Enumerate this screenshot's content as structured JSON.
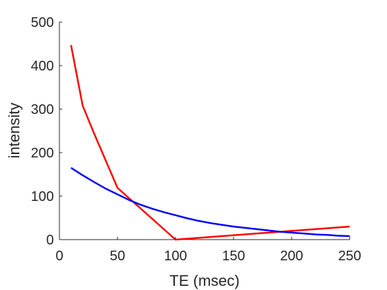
{
  "chart_data": {
    "type": "line",
    "title": "",
    "xlabel": "TE (msec)",
    "ylabel": "intensity",
    "xlim": [
      0,
      250
    ],
    "ylim": [
      0,
      500
    ],
    "xticks": [
      0,
      50,
      100,
      150,
      200,
      250
    ],
    "yticks": [
      0,
      100,
      200,
      300,
      400,
      500
    ],
    "grid": false,
    "series": [
      {
        "color": "#ff0000",
        "x": [
          10,
          20,
          30,
          50,
          100,
          250
        ],
        "y": [
          447,
          308,
          243,
          119,
          0,
          30
        ]
      },
      {
        "color": "#0000ff",
        "x": [
          10,
          20,
          30,
          40,
          50,
          60,
          70,
          80,
          90,
          100,
          110,
          120,
          130,
          140,
          150,
          160,
          170,
          180,
          190,
          200,
          210,
          220,
          230,
          240,
          250
        ],
        "y": [
          165,
          148,
          132,
          117,
          104,
          91,
          80,
          71,
          63,
          56,
          49,
          43,
          38,
          34,
          30,
          27,
          24,
          21,
          18,
          16,
          14,
          12,
          11,
          9,
          8
        ]
      }
    ]
  }
}
